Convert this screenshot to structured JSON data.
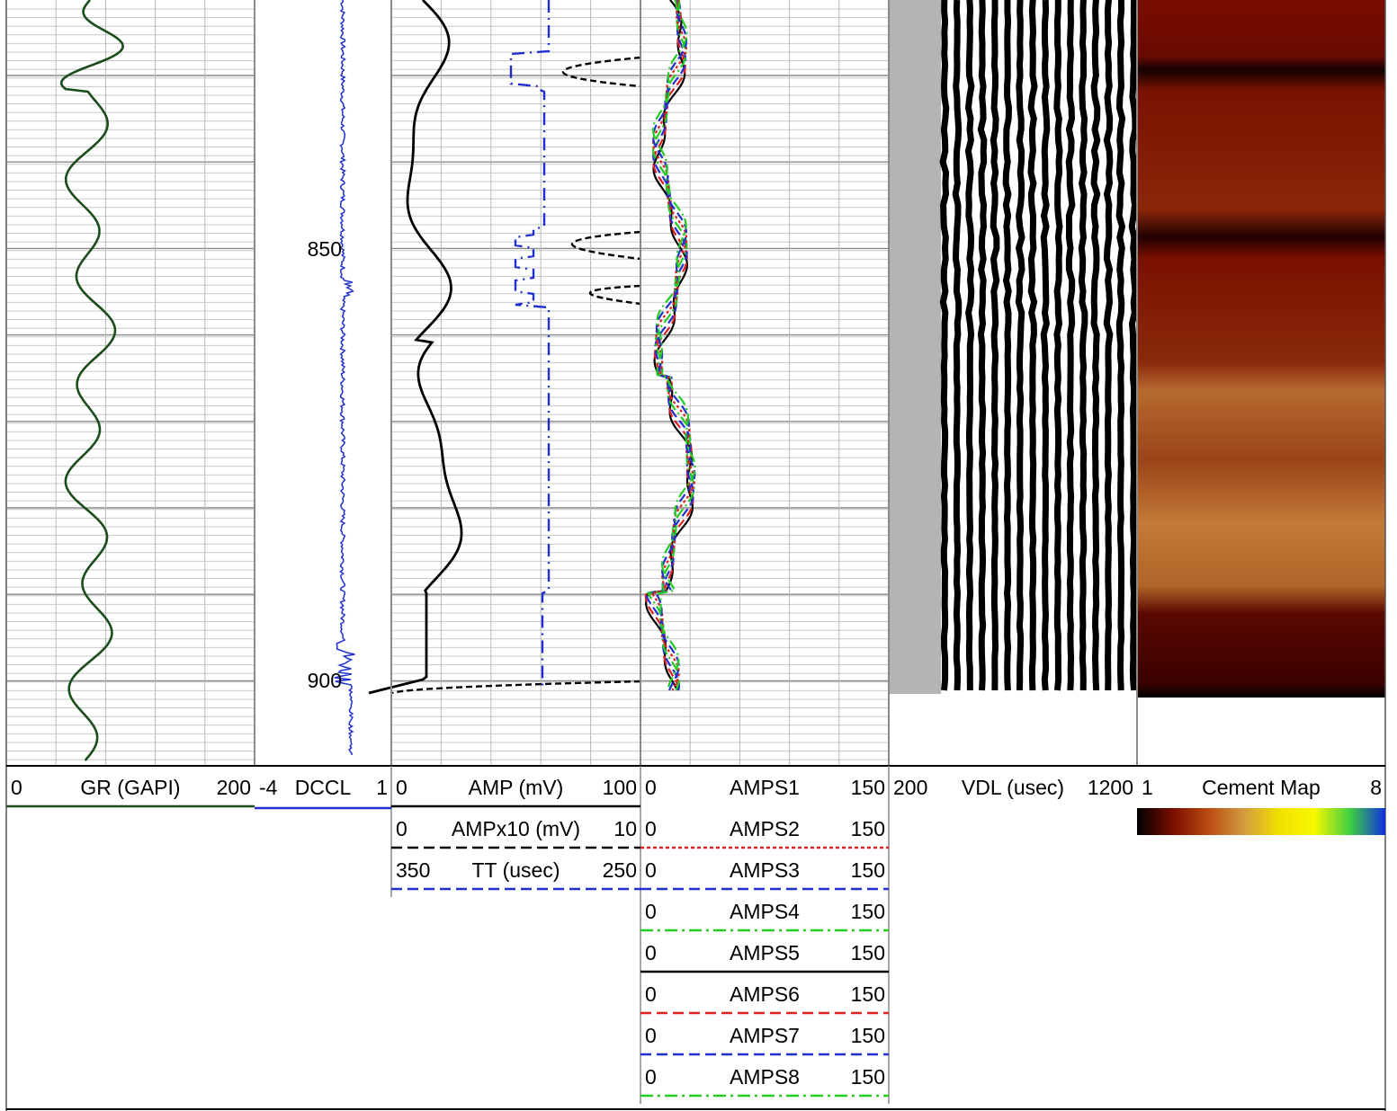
{
  "chart_data": {
    "type": "line",
    "depth_labels": [
      "850",
      "900"
    ],
    "tracks": [
      {
        "name": "GR",
        "curves": [
          {
            "label": "GR (GAPI)",
            "min": "0",
            "max": "200",
            "color": "#1b4d1b",
            "style": "solid"
          }
        ]
      },
      {
        "name": "DCCL",
        "curves": [
          {
            "label": "DCCL",
            "min": "-4",
            "max": "1",
            "color": "#1f2fd0",
            "style": "solid"
          }
        ]
      },
      {
        "name": "AMP",
        "curves": [
          {
            "label": "AMP (mV)",
            "min": "0",
            "max": "100",
            "color": "#000000",
            "style": "solid"
          },
          {
            "label": "AMPx10 (mV)",
            "min": "0",
            "max": "10",
            "color": "#000000",
            "style": "dashed"
          },
          {
            "label": "TT (usec)",
            "min": "350",
            "max": "250",
            "color": "#1f2fd0",
            "style": "dashed"
          }
        ]
      },
      {
        "name": "AMPS",
        "curves": [
          {
            "label": "AMPS1",
            "min": "0",
            "max": "150",
            "color": "#000000",
            "style": "none"
          },
          {
            "label": "AMPS2",
            "min": "0",
            "max": "150",
            "color": "#e02020",
            "style": "dotted"
          },
          {
            "label": "AMPS3",
            "min": "0",
            "max": "150",
            "color": "#1f2fd0",
            "style": "dashed"
          },
          {
            "label": "AMPS4",
            "min": "0",
            "max": "150",
            "color": "#22cc22",
            "style": "dashdot"
          },
          {
            "label": "AMPS5",
            "min": "0",
            "max": "150",
            "color": "#000000",
            "style": "solid"
          },
          {
            "label": "AMPS6",
            "min": "0",
            "max": "150",
            "color": "#e02020",
            "style": "dashed"
          },
          {
            "label": "AMPS7",
            "min": "0",
            "max": "150",
            "color": "#1f2fd0",
            "style": "dashed"
          },
          {
            "label": "AMPS8",
            "min": "0",
            "max": "150",
            "color": "#22cc22",
            "style": "dashdot"
          }
        ]
      },
      {
        "name": "VDL",
        "curves": [
          {
            "label": "VDL (usec)",
            "min": "200",
            "max": "1200"
          }
        ]
      },
      {
        "name": "Cement",
        "curves": [
          {
            "label": "Cement Map",
            "min": "1",
            "max": "8"
          }
        ],
        "colorbar": [
          "#000000",
          "#7a0d00",
          "#b84a10",
          "#d49a40",
          "#f0e000",
          "#f8f800",
          "#40d040",
          "#1030e0"
        ]
      }
    ]
  }
}
